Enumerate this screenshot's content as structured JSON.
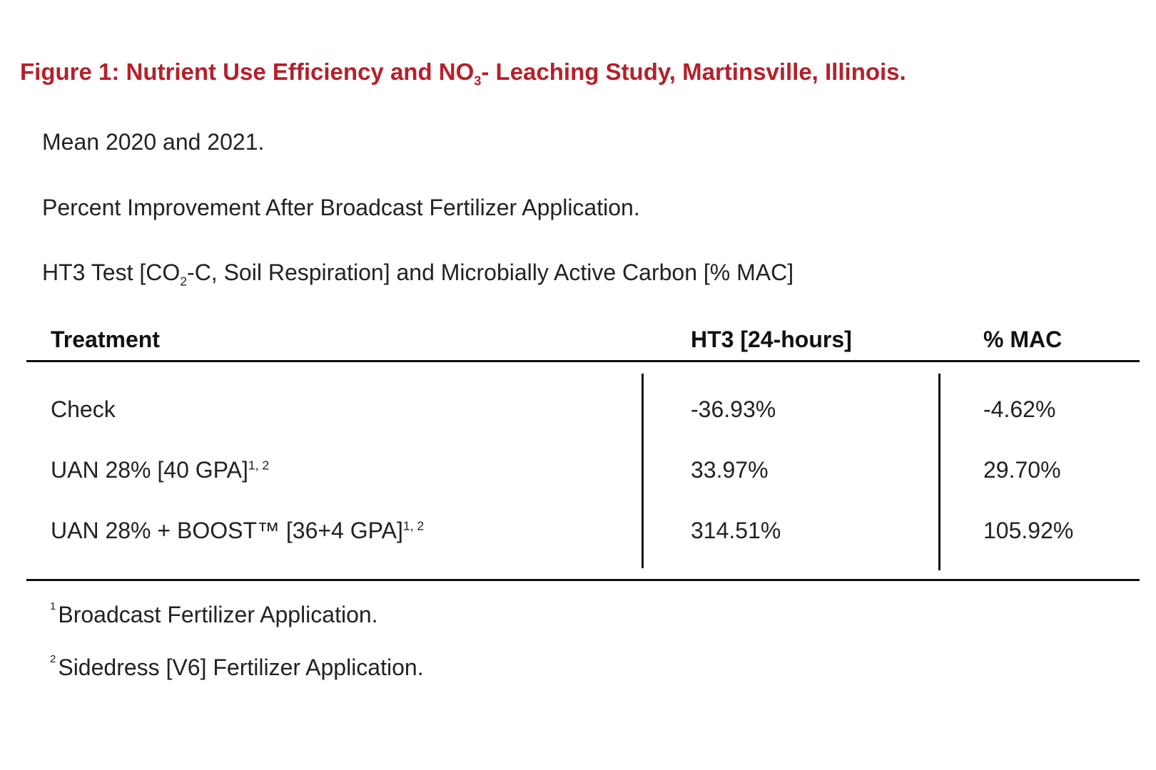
{
  "title": {
    "prefix": "Figure 1:  Nutrient Use Efficiency and NO",
    "subscript": "3",
    "suffix": "- Leaching Study, Martinsville, Illinois."
  },
  "subtitles": {
    "line1": "Mean 2020 and 2021.",
    "line2": "Percent Improvement After Broadcast Fertilizer Application.",
    "line3_prefix": "HT3 Test [CO",
    "line3_subscript": "2",
    "line3_suffix": "-C, Soil Respiration] and Microbially Active Carbon [% MAC]"
  },
  "table": {
    "headers": {
      "treatment": "Treatment",
      "ht3": "HT3 [24-hours]",
      "mac": "% MAC"
    },
    "rows": [
      {
        "treatment": "Check",
        "sup": "",
        "ht3": "-36.93%",
        "mac": "-4.62%"
      },
      {
        "treatment": "UAN 28%  [40 GPA]",
        "sup": "1, 2",
        "ht3": "33.97%",
        "mac": "29.70%"
      },
      {
        "treatment": "UAN 28% + BOOST™ [36+4 GPA]",
        "sup": "1, 2",
        "ht3": "314.51%",
        "mac": "105.92%"
      }
    ]
  },
  "footnotes": [
    {
      "mark": "1",
      "text": "Broadcast Fertilizer Application."
    },
    {
      "mark": "2",
      "text": "Sidedress [V6] Fertilizer Application."
    }
  ],
  "colors": {
    "title": "#b5202a",
    "text": "#222222",
    "rule": "#111111"
  }
}
